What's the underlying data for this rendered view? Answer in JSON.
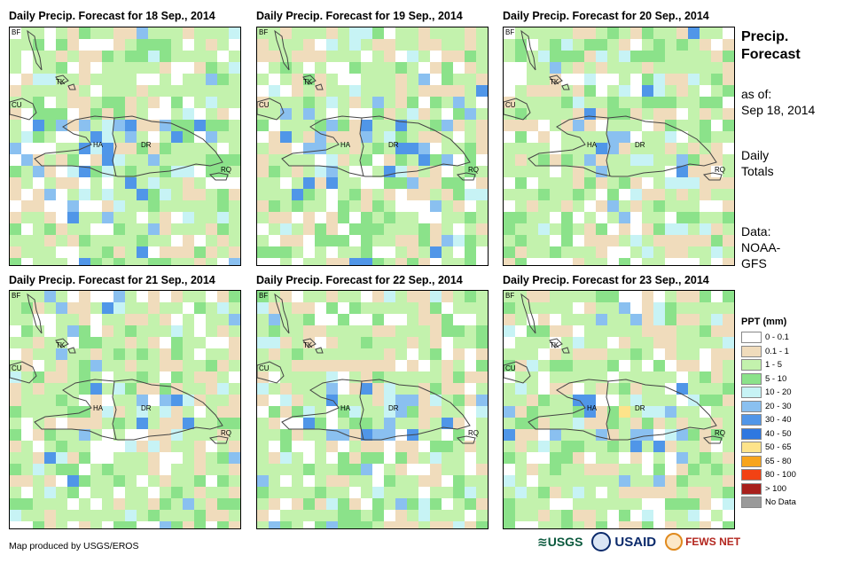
{
  "panels": [
    {
      "title": "Daily Precip. Forecast for 18 Sep., 2014",
      "seed": 18
    },
    {
      "title": "Daily Precip. Forecast for 19 Sep., 2014",
      "seed": 19
    },
    {
      "title": "Daily Precip. Forecast for 20 Sep., 2014",
      "seed": 20
    },
    {
      "title": "Daily Precip. Forecast for 21 Sep., 2014",
      "seed": 21
    },
    {
      "title": "Daily Precip. Forecast for 22 Sep., 2014",
      "seed": 22
    },
    {
      "title": "Daily Precip. Forecast for 23 Sep., 2014",
      "seed": 23
    }
  ],
  "map_labels": {
    "bf": "BF",
    "cu": "CU",
    "tk": "TK",
    "ha": "HA",
    "dr": "DR",
    "rq": "RQ"
  },
  "sidebar": {
    "title_line1": "Precip.",
    "title_line2": "Forecast",
    "asof_label": "as of:",
    "asof_date": "Sep 18, 2014",
    "totals_line1": "Daily",
    "totals_line2": "Totals",
    "data_line1": "Data:",
    "data_line2": "NOAA-",
    "data_line3": "GFS"
  },
  "legend": {
    "title": "PPT (mm)",
    "items": [
      {
        "label": "0 - 0.1",
        "color": "#ffffff"
      },
      {
        "label": "0.1 - 1",
        "color": "#f0dcbc"
      },
      {
        "label": "1 - 5",
        "color": "#c3f2ad"
      },
      {
        "label": "5 - 10",
        "color": "#8be28a"
      },
      {
        "label": "10 - 20",
        "color": "#c7f3f5"
      },
      {
        "label": "20 - 30",
        "color": "#8ac0f0"
      },
      {
        "label": "30 - 40",
        "color": "#5096e8"
      },
      {
        "label": "40 - 50",
        "color": "#2f78e0"
      },
      {
        "label": "50 - 65",
        "color": "#fde38a"
      },
      {
        "label": "65 - 80",
        "color": "#f7a41c"
      },
      {
        "label": "80 - 100",
        "color": "#f24214"
      },
      {
        "label": "> 100",
        "color": "#a8201c"
      },
      {
        "label": "No Data",
        "color": "#9a9a9a"
      }
    ]
  },
  "footer": {
    "credit": "Map produced by USGS/EROS"
  },
  "logos": {
    "usgs": "USGS",
    "usaid": "USAID",
    "fews": "FEWS NET"
  }
}
